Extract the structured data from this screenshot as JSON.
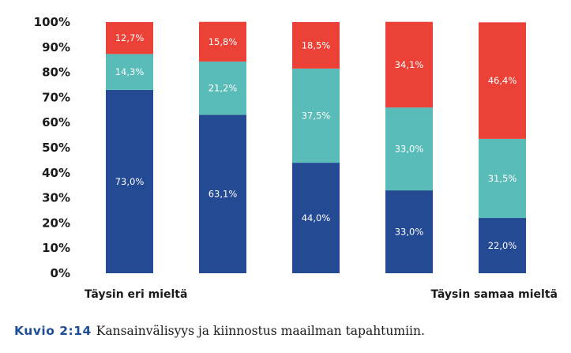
{
  "chart_data": {
    "type": "bar",
    "stacked": true,
    "categories": [
      "Täysin eri mieltä",
      "",
      "",
      "",
      "Täysin samaa mieltä"
    ],
    "series": [
      {
        "values": [
          73.0,
          63.1,
          44.0,
          33.0,
          22.0
        ],
        "color": "#244a94",
        "labels": [
          "73,0%",
          "63,1%",
          "44,0%",
          "33,0%",
          "22,0%"
        ]
      },
      {
        "values": [
          14.3,
          21.2,
          37.5,
          33.0,
          31.5
        ],
        "color": "#59bcb9",
        "labels": [
          "14,3%",
          "21,2%",
          "37,5%",
          "33,0%",
          "31,5%"
        ]
      },
      {
        "values": [
          12.7,
          15.8,
          18.5,
          34.1,
          46.4
        ],
        "color": "#ec4137",
        "labels": [
          "12,7%",
          "15,8%",
          "18,5%",
          "34,1%",
          "46,4%"
        ]
      }
    ],
    "ylim": [
      0,
      100
    ],
    "yticks": [
      "0%",
      "10%",
      "20%",
      "30%",
      "40%",
      "50%",
      "60%",
      "70%",
      "80%",
      "90%",
      "100%"
    ],
    "grid": false,
    "legend": "none"
  },
  "caption": {
    "label": "Kuvio 2:14",
    "text": "Kansainvälisyys ja kiinnostus maailman tapahtumiin."
  }
}
